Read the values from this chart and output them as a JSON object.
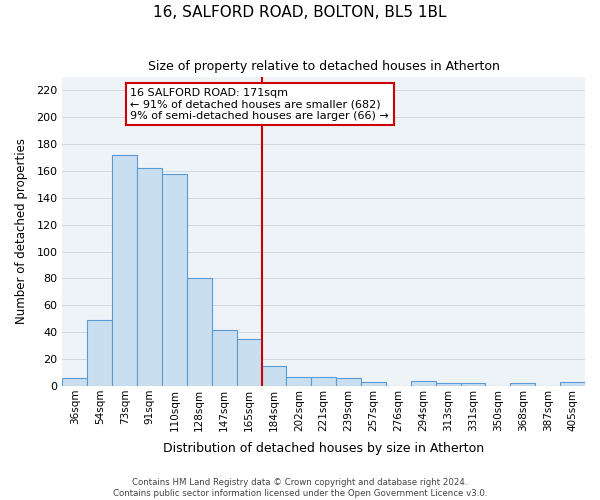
{
  "title": "16, SALFORD ROAD, BOLTON, BL5 1BL",
  "subtitle": "Size of property relative to detached houses in Atherton",
  "xlabel": "Distribution of detached houses by size in Atherton",
  "ylabel": "Number of detached properties",
  "categories": [
    "36sqm",
    "54sqm",
    "73sqm",
    "91sqm",
    "110sqm",
    "128sqm",
    "147sqm",
    "165sqm",
    "184sqm",
    "202sqm",
    "221sqm",
    "239sqm",
    "257sqm",
    "276sqm",
    "294sqm",
    "313sqm",
    "331sqm",
    "350sqm",
    "368sqm",
    "387sqm",
    "405sqm"
  ],
  "values": [
    6,
    49,
    172,
    162,
    158,
    80,
    42,
    35,
    15,
    7,
    7,
    6,
    3,
    0,
    4,
    2,
    2,
    0,
    2,
    0,
    3
  ],
  "bar_color": "#c9dff0",
  "bar_edge_color": "#5b9bd5",
  "vline_x_index": 7.5,
  "vline_color": "#cc0000",
  "annotation_text": "16 SALFORD ROAD: 171sqm\n← 91% of detached houses are smaller (682)\n9% of semi-detached houses are larger (66) →",
  "annotation_box_color": "#cc0000",
  "ylim": [
    0,
    230
  ],
  "yticks": [
    0,
    20,
    40,
    60,
    80,
    100,
    120,
    140,
    160,
    180,
    200,
    220
  ],
  "grid_color": "#d0d8e0",
  "bg_color": "#eef3f8",
  "footer_line1": "Contains HM Land Registry data © Crown copyright and database right 2024.",
  "footer_line2": "Contains public sector information licensed under the Open Government Licence v3.0."
}
